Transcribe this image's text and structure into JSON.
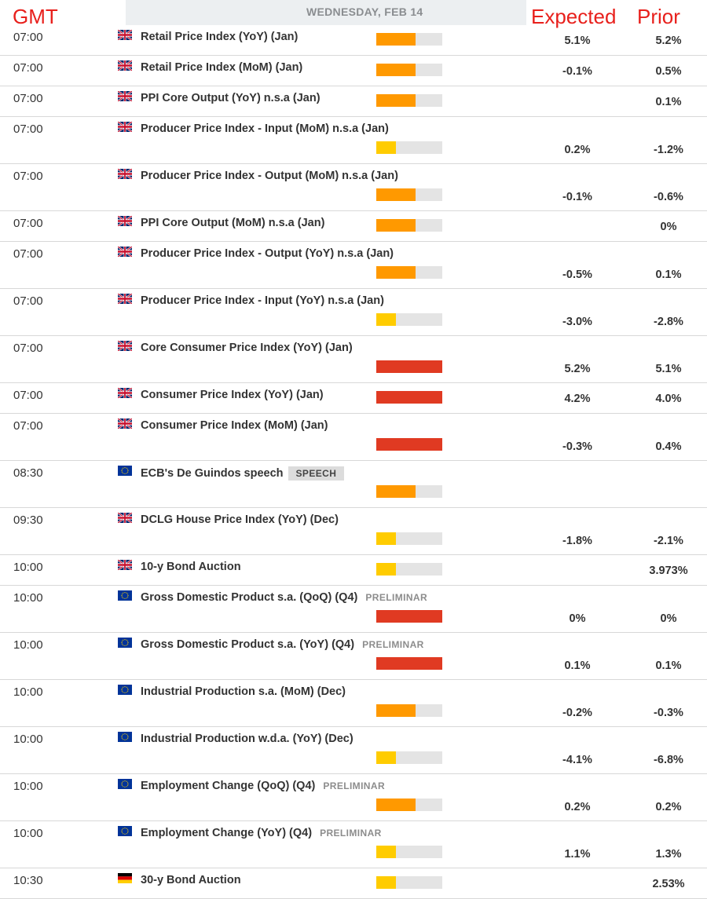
{
  "header": {
    "gmt_label": "GMT",
    "date": "WEDNESDAY, FEB 14",
    "expected_label": "Expected",
    "prior_label": "Prior"
  },
  "colors": {
    "accent_red": "#e8201c",
    "impact_low": "#ffcc00",
    "impact_medium": "#ff9900",
    "impact_high": "#e03a22"
  },
  "events": [
    {
      "time": "07:00",
      "flag": "uk",
      "name": "Retail Price Index (YoY) (Jan)",
      "badge": "",
      "impact": "medium",
      "expected": "5.1%",
      "prior": "5.2%",
      "layout": "single"
    },
    {
      "time": "07:00",
      "flag": "uk",
      "name": "Retail Price Index (MoM) (Jan)",
      "badge": "",
      "impact": "medium",
      "expected": "-0.1%",
      "prior": "0.5%",
      "layout": "single"
    },
    {
      "time": "07:00",
      "flag": "uk",
      "name": "PPI Core Output (YoY) n.s.a (Jan)",
      "badge": "",
      "impact": "medium",
      "expected": "",
      "prior": "0.1%",
      "layout": "single"
    },
    {
      "time": "07:00",
      "flag": "uk",
      "name": "Producer Price Index - Input (MoM) n.s.a (Jan)",
      "badge": "",
      "impact": "low",
      "expected": "0.2%",
      "prior": "-1.2%",
      "layout": "double"
    },
    {
      "time": "07:00",
      "flag": "uk",
      "name": "Producer Price Index - Output (MoM) n.s.a (Jan)",
      "badge": "",
      "impact": "medium",
      "expected": "-0.1%",
      "prior": "-0.6%",
      "layout": "double"
    },
    {
      "time": "07:00",
      "flag": "uk",
      "name": "PPI Core Output (MoM) n.s.a (Jan)",
      "badge": "",
      "impact": "medium",
      "expected": "",
      "prior": "0%",
      "layout": "single"
    },
    {
      "time": "07:00",
      "flag": "uk",
      "name": "Producer Price Index - Output (YoY) n.s.a (Jan)",
      "badge": "",
      "impact": "medium",
      "expected": "-0.5%",
      "prior": "0.1%",
      "layout": "double"
    },
    {
      "time": "07:00",
      "flag": "uk",
      "name": "Producer Price Index - Input (YoY) n.s.a (Jan)",
      "badge": "",
      "impact": "low",
      "expected": "-3.0%",
      "prior": "-2.8%",
      "layout": "double"
    },
    {
      "time": "07:00",
      "flag": "uk",
      "name": "Core Consumer Price Index (YoY) (Jan)",
      "badge": "",
      "impact": "high",
      "expected": "5.2%",
      "prior": "5.1%",
      "layout": "double"
    },
    {
      "time": "07:00",
      "flag": "uk",
      "name": "Consumer Price Index (YoY) (Jan)",
      "badge": "",
      "impact": "high",
      "expected": "4.2%",
      "prior": "4.0%",
      "layout": "single"
    },
    {
      "time": "07:00",
      "flag": "uk",
      "name": "Consumer Price Index (MoM) (Jan)",
      "badge": "",
      "impact": "high",
      "expected": "-0.3%",
      "prior": "0.4%",
      "layout": "double"
    },
    {
      "time": "08:30",
      "flag": "eu",
      "name": "ECB's De Guindos speech",
      "badge": "SPEECH",
      "impact": "medium",
      "expected": "",
      "prior": "",
      "layout": "double"
    },
    {
      "time": "09:30",
      "flag": "uk",
      "name": "DCLG House Price Index (YoY) (Dec)",
      "badge": "",
      "impact": "low",
      "expected": "-1.8%",
      "prior": "-2.1%",
      "layout": "double"
    },
    {
      "time": "10:00",
      "flag": "uk",
      "name": "10-y Bond Auction",
      "badge": "",
      "impact": "low",
      "expected": "",
      "prior": "3.973%",
      "layout": "single"
    },
    {
      "time": "10:00",
      "flag": "eu",
      "name": "Gross Domestic Product s.a. (QoQ) (Q4)",
      "badge": "PRELIMINAR",
      "impact": "high",
      "expected": "0%",
      "prior": "0%",
      "layout": "double"
    },
    {
      "time": "10:00",
      "flag": "eu",
      "name": "Gross Domestic Product s.a. (YoY) (Q4)",
      "badge": "PRELIMINAR",
      "impact": "high",
      "expected": "0.1%",
      "prior": "0.1%",
      "layout": "double"
    },
    {
      "time": "10:00",
      "flag": "eu",
      "name": "Industrial Production s.a. (MoM) (Dec)",
      "badge": "",
      "impact": "medium",
      "expected": "-0.2%",
      "prior": "-0.3%",
      "layout": "double"
    },
    {
      "time": "10:00",
      "flag": "eu",
      "name": "Industrial Production w.d.a. (YoY) (Dec)",
      "badge": "",
      "impact": "low",
      "expected": "-4.1%",
      "prior": "-6.8%",
      "layout": "double"
    },
    {
      "time": "10:00",
      "flag": "eu",
      "name": "Employment Change (QoQ) (Q4)",
      "badge": "PRELIMINAR",
      "impact": "medium",
      "expected": "0.2%",
      "prior": "0.2%",
      "layout": "double"
    },
    {
      "time": "10:00",
      "flag": "eu",
      "name": "Employment Change (YoY) (Q4)",
      "badge": "PRELIMINAR",
      "impact": "low",
      "expected": "1.1%",
      "prior": "1.3%",
      "layout": "double"
    },
    {
      "time": "10:30",
      "flag": "de",
      "name": "30-y Bond Auction",
      "badge": "",
      "impact": "low",
      "expected": "",
      "prior": "2.53%",
      "layout": "single"
    }
  ]
}
